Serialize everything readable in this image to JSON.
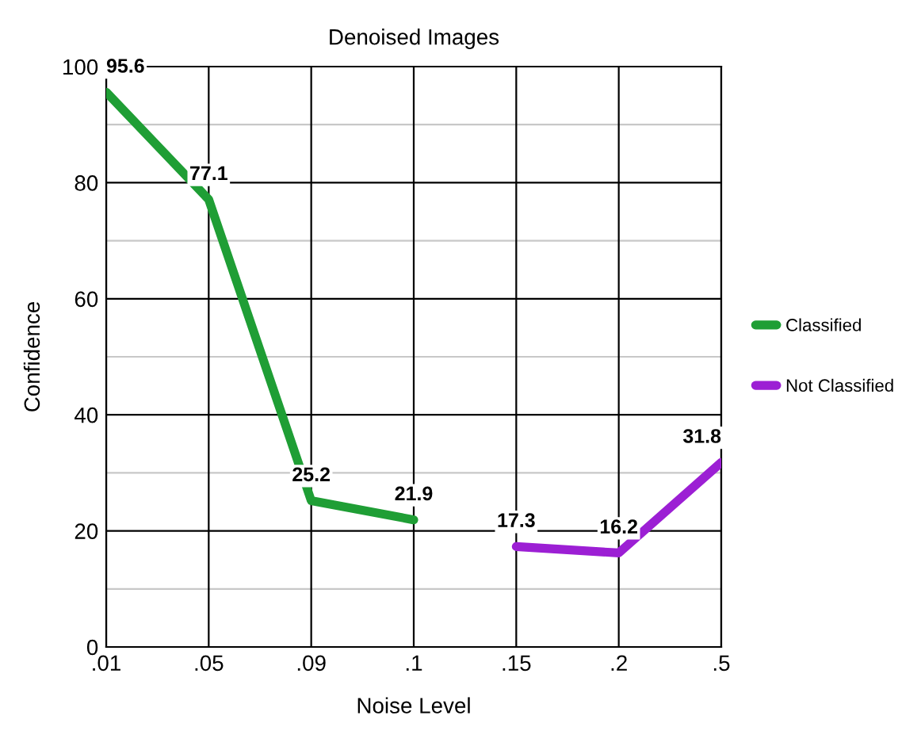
{
  "chart_data": {
    "type": "line",
    "title": "Denoised Images",
    "xlabel": "Noise Level",
    "ylabel": "Confidence",
    "categories": [
      ".01",
      ".05",
      ".09",
      ".1",
      ".15",
      ".2",
      ".5"
    ],
    "series": [
      {
        "name": "Classified",
        "color": "#1f9e35",
        "values": [
          95.6,
          77.1,
          25.2,
          21.9,
          null,
          null,
          null
        ]
      },
      {
        "name": "Not Classified",
        "color": "#9c1fd4",
        "values": [
          null,
          null,
          null,
          null,
          17.3,
          16.2,
          31.8
        ]
      }
    ],
    "ylim": [
      0,
      100
    ],
    "yticks": [
      0,
      {
        "value": 10,
        "label": null
      },
      20,
      {
        "value": 30,
        "label": null
      },
      40,
      {
        "value": 50,
        "label": null
      },
      60,
      {
        "value": 70,
        "label": null
      },
      80,
      {
        "value": 90,
        "label": null
      },
      100
    ],
    "grid": true,
    "legend": "right",
    "data_labels": true,
    "marker": "none",
    "line_style": "solid"
  }
}
